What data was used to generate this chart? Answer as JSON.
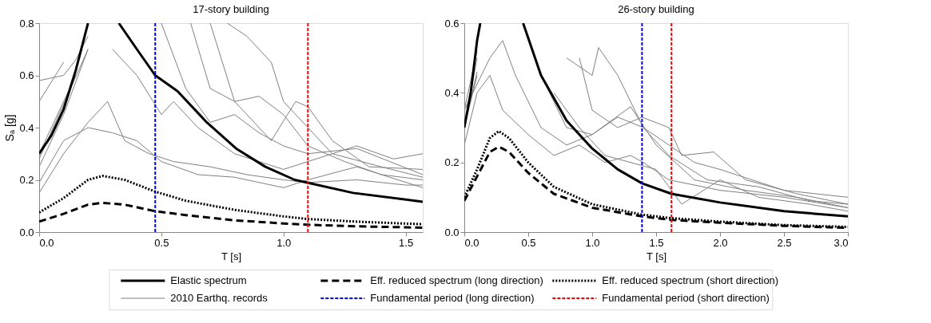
{
  "chart_data": [
    {
      "type": "line",
      "title": "17-story building",
      "xlabel": "T [s]",
      "ylabel": "Sₐ [g]",
      "xlim": [
        0,
        1.57
      ],
      "xticks": [
        {
          "value": 0,
          "label": "0.0"
        },
        0.5,
        {
          "value": 1,
          "label": "1.0"
        },
        1.5
      ],
      "ylim": [
        0,
        0.8
      ],
      "yticks": [
        {
          "value": 0,
          "label": "0.0"
        },
        0.2,
        0.4,
        0.6,
        0.8
      ],
      "legend": "bottom",
      "series": [
        {
          "name": "Elastic spectrum",
          "color": "#000000",
          "line_style": "solid",
          "x": [
            0,
            0.05,
            0.1,
            0.15,
            0.2,
            0.26,
            0.326,
            0.4,
            0.475,
            0.566,
            0.686,
            0.806,
            0.926,
            1.046,
            1.285,
            1.57
          ],
          "values": [
            0.3,
            0.37,
            0.47,
            0.62,
            0.8,
            null,
            0.8,
            0.7,
            0.6,
            0.54,
            0.42,
            0.32,
            0.25,
            0.2,
            0.15,
            0.116
          ]
        },
        {
          "name": "2010 Earthq. records",
          "color": "#808080",
          "line_style": "solid",
          "x": [
            0,
            0.1,
            0.2,
            0.28,
            0.35,
            0.45,
            0.55,
            0.7,
            0.85,
            1.0,
            1.1,
            1.3,
            1.5,
            1.57
          ],
          "values": [
            0.15,
            0.3,
            0.42,
            0.5,
            0.35,
            0.3,
            0.27,
            0.25,
            0.22,
            0.2,
            0.19,
            0.2,
            0.18,
            0.18
          ]
        },
        {
          "name": "Eff. reduced spectrum (long direction)",
          "color": "#000000",
          "line_style": "dashed",
          "x": [
            0,
            0.1,
            0.2,
            0.26,
            0.35,
            0.475,
            0.6,
            0.8,
            1.0,
            1.1,
            1.3,
            1.57
          ],
          "values": [
            0.04,
            0.07,
            0.105,
            0.112,
            0.105,
            0.08,
            0.065,
            0.045,
            0.033,
            0.028,
            0.022,
            0.017
          ]
        },
        {
          "name": "Eff. reduced spectrum (short direction)",
          "color": "#000000",
          "line_style": "dotted",
          "x": [
            0,
            0.1,
            0.2,
            0.26,
            0.35,
            0.475,
            0.6,
            0.8,
            1.0,
            1.1,
            1.3,
            1.57
          ],
          "values": [
            0.075,
            0.13,
            0.2,
            0.215,
            0.2,
            0.155,
            0.12,
            0.085,
            0.06,
            0.05,
            0.04,
            0.03
          ]
        },
        {
          "color": "#808080",
          "line_style": "solid",
          "x": [
            0,
            0.1,
            0.2,
            0.3,
            0.4,
            0.5,
            0.65,
            0.8,
            1.0,
            1.1,
            1.3,
            1.57
          ],
          "values": [
            0.19,
            0.35,
            0.4,
            0.38,
            0.35,
            0.27,
            0.22,
            0.21,
            0.17,
            0.2,
            0.25,
            0.17
          ]
        },
        {
          "color": "#808080",
          "line_style": "solid",
          "x": [
            0,
            0.1,
            0.15,
            0.2,
            0.25,
            0.3,
            0.4,
            0.5,
            0.55,
            0.65,
            0.8,
            1.0,
            1.2,
            1.4,
            1.57
          ],
          "values": [
            0.58,
            0.6,
            0.66,
            0.75,
            null,
            0.7,
            0.6,
            0.45,
            0.5,
            0.4,
            0.3,
            0.24,
            0.3,
            0.25,
            0.21
          ]
        },
        {
          "color": "#808080",
          "line_style": "solid",
          "x": [
            0,
            0.1,
            0.2,
            0.3,
            0.45,
            0.5,
            0.6,
            0.7,
            0.8,
            0.9,
            1.0,
            1.1,
            1.3,
            1.57
          ],
          "values": [
            0.25,
            0.45,
            0.7,
            null,
            null,
            0.8,
            0.55,
            0.42,
            0.45,
            0.38,
            0.33,
            0.3,
            0.32,
            0.22
          ]
        },
        {
          "color": "#808080",
          "line_style": "solid",
          "x": [
            0,
            0.15,
            0.3,
            0.6,
            0.7,
            0.8,
            0.95,
            1.05,
            1.1,
            1.2,
            1.35,
            1.57
          ],
          "values": [
            0.3,
            0.6,
            null,
            null,
            0.8,
            0.5,
            0.35,
            0.5,
            0.48,
            0.35,
            0.25,
            0.24
          ]
        },
        {
          "color": "#808080",
          "line_style": "solid",
          "x": [
            0,
            0.2,
            0.3,
            0.75,
            0.77,
            0.85,
            0.95,
            1.0,
            1.1,
            1.2,
            1.3,
            1.45,
            1.57
          ],
          "values": [
            0.28,
            0.7,
            null,
            null,
            0.8,
            0.75,
            0.65,
            0.5,
            0.4,
            0.3,
            0.33,
            0.28,
            0.3
          ]
        },
        {
          "color": "#808080",
          "line_style": "solid",
          "x": [
            0,
            0.1,
            0.2,
            0.55,
            0.62,
            0.7,
            0.8,
            0.9,
            1.0,
            1.1,
            1.25,
            1.4,
            1.57
          ],
          "values": [
            0.5,
            0.65,
            null,
            null,
            0.8,
            0.55,
            0.5,
            0.52,
            0.45,
            0.33,
            0.27,
            0.22,
            0.2
          ]
        }
      ],
      "ref_lines": [
        {
          "axis": "x",
          "value": 0.475,
          "label": "Fundamental period (long direction)",
          "color": "#0000ff",
          "line_style": "dashed"
        },
        {
          "axis": "x",
          "value": 1.1,
          "label": "Fundamental period (short direction)",
          "color": "#ff0000",
          "line_style": "dashed"
        }
      ]
    },
    {
      "type": "line",
      "title": "26-story building",
      "xlabel": "T [s]",
      "xlim": [
        0,
        3
      ],
      "xticks": [
        {
          "value": 0,
          "label": "0.0"
        },
        0.5,
        {
          "value": 1,
          "label": "1.0"
        },
        1.5,
        {
          "value": 2,
          "label": "2.0"
        },
        2.5,
        {
          "value": 3,
          "label": "3.0"
        }
      ],
      "ylim": [
        0,
        0.6
      ],
      "yticks": [
        {
          "value": 0,
          "label": "0.0"
        },
        0.2,
        0.4,
        0.6
      ],
      "series": [
        {
          "color": "#000000",
          "line_style": "solid",
          "x": [
            0,
            0.05,
            0.1,
            0.125,
            0.3,
            0.46,
            0.6,
            0.8,
            1.0,
            1.2,
            1.39,
            1.62,
            2.0,
            2.5,
            3.0
          ],
          "values": [
            0.3,
            0.4,
            0.55,
            0.6,
            null,
            0.6,
            0.45,
            0.32,
            0.24,
            0.18,
            0.14,
            0.11,
            0.085,
            0.06,
            0.045
          ]
        },
        {
          "color": "#808080",
          "line_style": "solid",
          "x": [
            0,
            0.1,
            0.2,
            0.3,
            0.5,
            0.7,
            0.9,
            1.1,
            1.3,
            1.4,
            1.6,
            2.0,
            2.5,
            3.0
          ],
          "values": [
            0.25,
            0.4,
            0.45,
            0.35,
            0.28,
            0.22,
            0.25,
            0.2,
            0.22,
            0.2,
            0.15,
            0.12,
            0.1,
            0.07
          ]
        },
        {
          "color": "#000000",
          "line_style": "dashed",
          "x": [
            0,
            0.1,
            0.2,
            0.27,
            0.35,
            0.5,
            0.7,
            1.0,
            1.39,
            1.62,
            2.0,
            2.5,
            3.0
          ],
          "values": [
            0.09,
            0.16,
            0.23,
            0.245,
            0.23,
            0.17,
            0.11,
            0.07,
            0.045,
            0.035,
            0.027,
            0.018,
            0.012
          ]
        },
        {
          "color": "#000000",
          "line_style": "dotted",
          "x": [
            0,
            0.1,
            0.2,
            0.27,
            0.35,
            0.5,
            0.7,
            1.0,
            1.39,
            1.62,
            2.0,
            2.5,
            3.0
          ],
          "values": [
            0.1,
            0.18,
            0.27,
            0.29,
            0.27,
            0.2,
            0.13,
            0.08,
            0.05,
            0.04,
            0.03,
            0.02,
            0.015
          ]
        },
        {
          "color": "#808080",
          "line_style": "solid",
          "x": [
            0,
            0.1,
            0.2,
            0.5,
            0.6,
            0.8,
            1.0,
            1.2,
            1.4,
            1.6,
            1.9,
            2.3,
            2.7,
            3.0
          ],
          "values": [
            0.3,
            0.45,
            null,
            null,
            0.45,
            0.3,
            0.28,
            0.33,
            0.3,
            0.22,
            0.15,
            0.13,
            0.09,
            0.08
          ]
        },
        {
          "color": "#808080",
          "line_style": "solid",
          "x": [
            0,
            0.1,
            0.15,
            0.75,
            0.8,
            1.0,
            1.05,
            1.2,
            1.4,
            1.6,
            1.8,
            2.0,
            2.5,
            3.0
          ],
          "values": [
            0.35,
            0.52,
            null,
            null,
            0.5,
            0.45,
            0.53,
            0.45,
            0.3,
            0.25,
            0.2,
            0.18,
            0.12,
            0.1
          ]
        },
        {
          "color": "#808080",
          "line_style": "solid",
          "x": [
            0,
            0.1,
            0.15,
            0.85,
            0.9,
            1.0,
            1.2,
            1.39,
            1.6,
            1.7,
            1.95,
            2.2,
            2.6,
            3.0
          ],
          "values": [
            0.3,
            0.5,
            null,
            null,
            0.5,
            0.35,
            0.3,
            0.33,
            0.3,
            0.22,
            0.23,
            0.15,
            0.11,
            0.08
          ]
        },
        {
          "color": "#808080",
          "line_style": "solid",
          "x": [
            0,
            0.1,
            0.15,
            0.6,
            0.7,
            0.9,
            1.1,
            1.3,
            1.5,
            1.7,
            2.0,
            2.3,
            2.7,
            3.0
          ],
          "values": [
            0.3,
            0.46,
            null,
            null,
            0.4,
            0.3,
            0.22,
            0.2,
            0.18,
            0.08,
            0.15,
            0.1,
            0.08,
            0.06
          ]
        },
        {
          "color": "#808080",
          "line_style": "solid",
          "x": [
            0,
            0.2,
            0.3,
            0.4,
            0.6,
            0.8,
            1.0,
            1.3,
            1.5,
            1.8,
            2.2,
            2.6,
            3.0
          ],
          "values": [
            0.35,
            0.5,
            0.55,
            0.45,
            0.3,
            0.25,
            0.28,
            0.36,
            0.25,
            0.15,
            0.12,
            0.1,
            0.07
          ]
        }
      ],
      "ref_lines": [
        {
          "axis": "x",
          "value": 1.39,
          "color": "#0000ff",
          "line_style": "dashed"
        },
        {
          "axis": "x",
          "value": 1.62,
          "color": "#ff0000",
          "line_style": "dashed"
        }
      ]
    }
  ]
}
